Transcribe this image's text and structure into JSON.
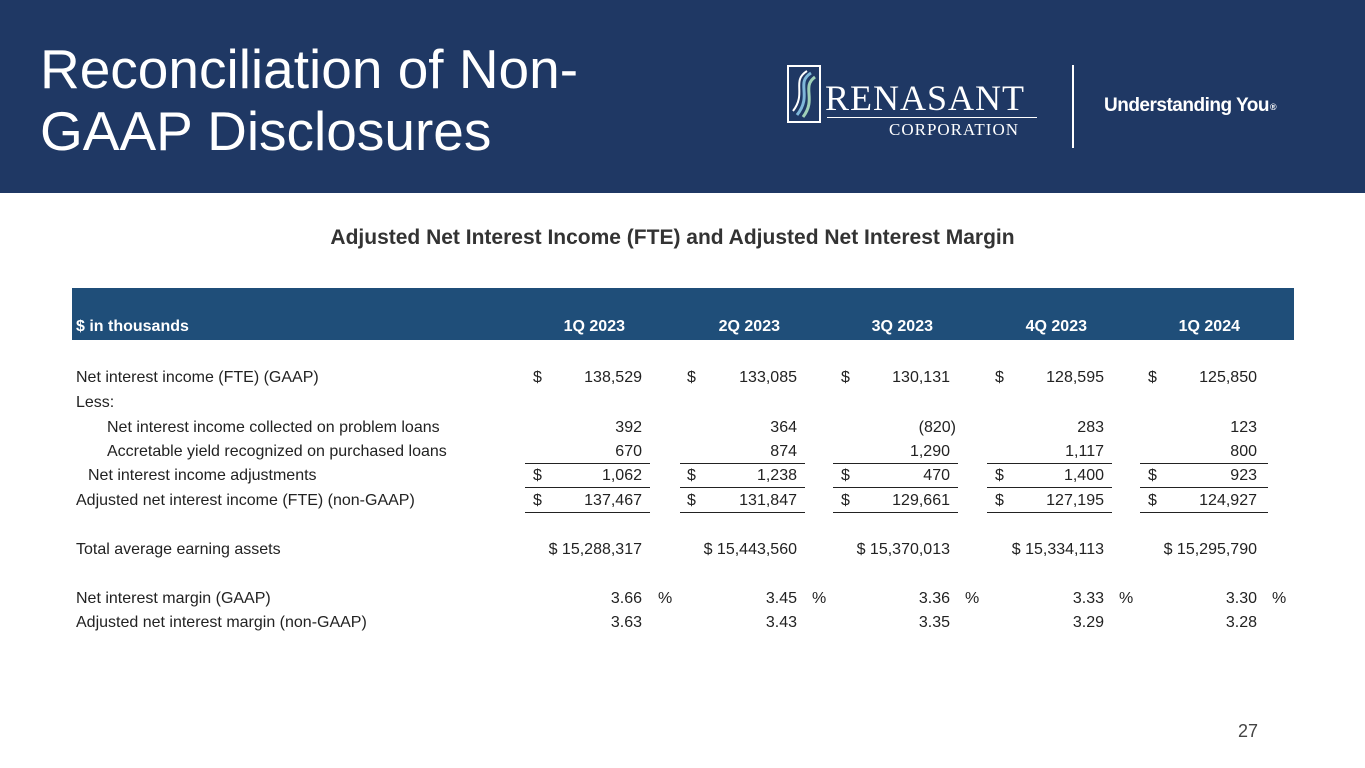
{
  "slide": {
    "title": "Reconciliation of Non-GAAP Disclosures",
    "subtitle": "Adjusted Net Interest Income (FTE) and Adjusted Net Interest Margin",
    "page_number": "27"
  },
  "brand": {
    "name": "RENASANT",
    "sub": "CORPORATION",
    "tagline": "Understanding You",
    "tagline_mark": "®",
    "header_color": "#1f3864",
    "table_header_color": "#1f4e79"
  },
  "table": {
    "units_label": "$ in thousands",
    "columns": [
      "1Q 2023",
      "2Q 2023",
      "3Q 2023",
      "4Q 2023",
      "1Q 2024"
    ],
    "rows": {
      "nii_gaap": {
        "label": "Net interest income (FTE) (GAAP)",
        "values": [
          "138,529",
          "133,085",
          "130,131",
          "128,595",
          "125,850"
        ]
      },
      "less": {
        "label": "Less:"
      },
      "problem_loans": {
        "label": "Net interest income collected on problem loans",
        "values": [
          "392",
          "364",
          "(820)",
          "283",
          "123"
        ]
      },
      "accretable": {
        "label": "Accretable yield recognized on purchased loans",
        "values": [
          "670",
          "874",
          "1,290",
          "1,117",
          "800"
        ]
      },
      "adjustments": {
        "label": "Net interest income adjustments",
        "values": [
          "1,062",
          "1,238",
          "470",
          "1,400",
          "923"
        ]
      },
      "adj_nii": {
        "label": "Adjusted net interest income (FTE) (non-GAAP)",
        "values": [
          "137,467",
          "131,847",
          "129,661",
          "127,195",
          "124,927"
        ]
      },
      "earning_assets": {
        "label": "Total average earning assets",
        "values": [
          "$ 15,288,317",
          "$ 15,443,560",
          "$ 15,370,013",
          "$ 15,334,113",
          "$ 15,295,790"
        ]
      },
      "nim_gaap": {
        "label": "Net interest margin (GAAP)",
        "values": [
          "3.66",
          "3.45",
          "3.36",
          "3.33",
          "3.30"
        ]
      },
      "adj_nim": {
        "label": "Adjusted net interest margin (non-GAAP)",
        "values": [
          "3.63",
          "3.43",
          "3.35",
          "3.29",
          "3.28"
        ]
      }
    },
    "currency_symbol": "$",
    "percent_symbol": "%"
  }
}
